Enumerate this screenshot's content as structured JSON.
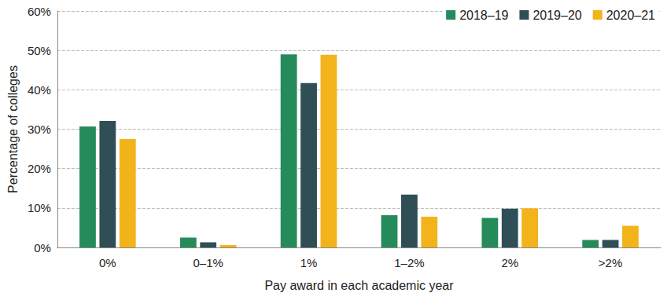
{
  "chart_data": {
    "type": "bar",
    "x_label": "Pay award in each academic year",
    "y_label": "Percentage of colleges",
    "categories": [
      "0%",
      "0–1%",
      "1%",
      "1–2%",
      "2%",
      ">2%"
    ],
    "series": [
      {
        "name": "2018–19",
        "color": "#268b5b",
        "values": [
          30.7,
          2.5,
          49.0,
          8.2,
          7.5,
          1.9
        ]
      },
      {
        "name": "2019–20",
        "color": "#2f4e56",
        "values": [
          32.1,
          1.3,
          41.7,
          13.4,
          9.8,
          1.9
        ]
      },
      {
        "name": "2020–21",
        "color": "#f2b31b",
        "values": [
          27.5,
          0.6,
          48.9,
          7.8,
          9.9,
          5.5
        ]
      }
    ],
    "ylim": [
      0,
      60
    ],
    "yticks": [
      {
        "value": 0,
        "label": "0%"
      },
      {
        "value": 10,
        "label": "10%"
      },
      {
        "value": 20,
        "label": "20%"
      },
      {
        "value": 30,
        "label": "30%"
      },
      {
        "value": 40,
        "label": "40%"
      },
      {
        "value": 50,
        "label": "50%"
      },
      {
        "value": 60,
        "label": "60%"
      }
    ],
    "grid": true,
    "legend": "upper right"
  }
}
